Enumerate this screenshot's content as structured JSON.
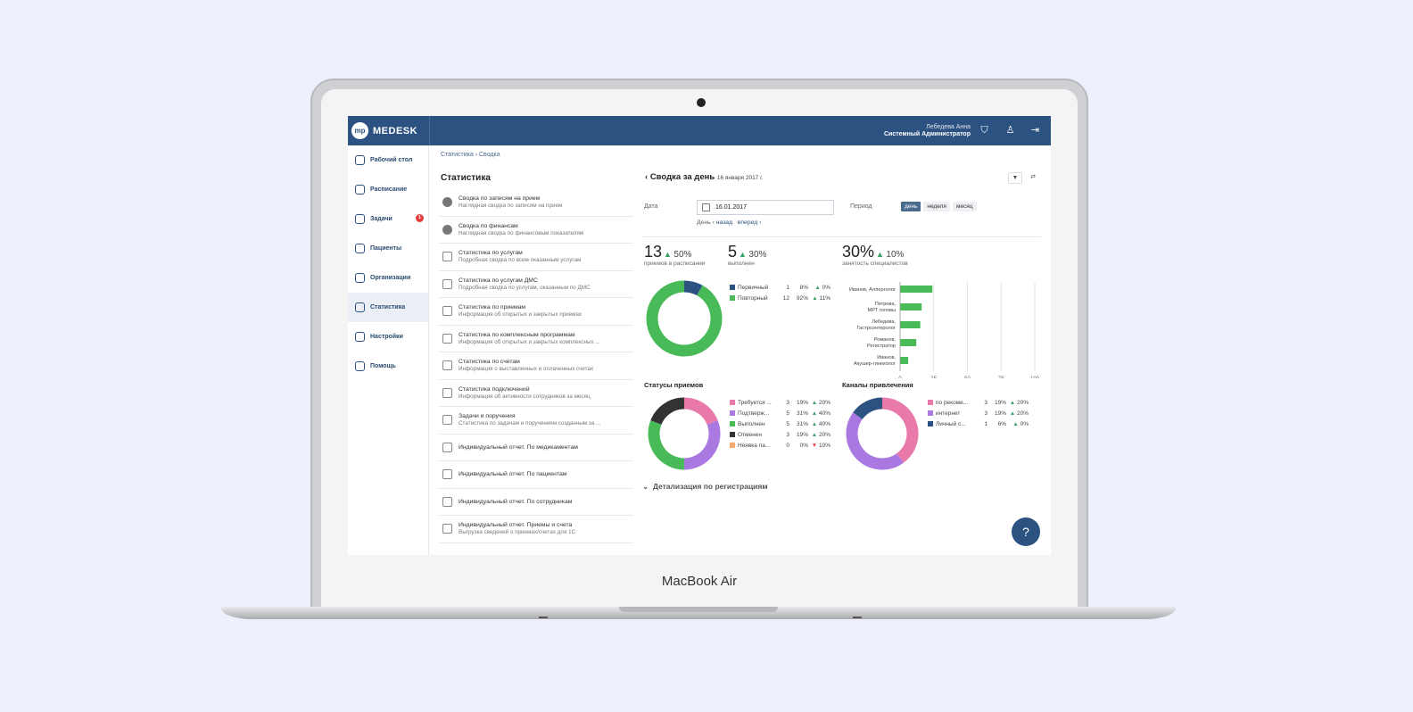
{
  "device": {
    "brand": "MacBook Air"
  },
  "app": {
    "logo_mark": "mp",
    "logo_text": "MEDESK"
  },
  "user": {
    "name": "Лебедева Анна",
    "role": "Системный Администратор"
  },
  "topbar_icons": [
    "shield-icon",
    "user-icon",
    "logout-icon"
  ],
  "sidebar": {
    "items": [
      {
        "label": "Рабочий стол",
        "icon": "dashboard-icon",
        "active": false
      },
      {
        "label": "Расписание",
        "icon": "calendar-icon",
        "active": false
      },
      {
        "label": "Задачи",
        "icon": "tasks-icon",
        "active": false,
        "badge": "1"
      },
      {
        "label": "Пациенты",
        "icon": "patients-icon",
        "active": false
      },
      {
        "label": "Организации",
        "icon": "organizations-icon",
        "active": false
      },
      {
        "label": "Статистика",
        "icon": "statistics-icon",
        "active": true
      },
      {
        "label": "Настройки",
        "icon": "settings-icon",
        "active": false
      },
      {
        "label": "Помощь",
        "icon": "help-icon",
        "active": false
      }
    ]
  },
  "breadcrumb": {
    "root": "Статистика",
    "current": "Сводка"
  },
  "list": {
    "title": "Статистика",
    "reports": [
      {
        "title": "Сводка по записям на прием",
        "subtitle": "Наглядная сводка по записям на прием",
        "icon": "pie"
      },
      {
        "title": "Сводка по финансам",
        "subtitle": "Наглядная сводка по финансовым показателям",
        "icon": "pie"
      },
      {
        "title": "Статистика по услугам",
        "subtitle": "Подробная сводка по всем оказанным услугам",
        "icon": "table"
      },
      {
        "title": "Статистика по услугам ДМС",
        "subtitle": "Подробная сводка по услугам, оказанным по ДМС",
        "icon": "table"
      },
      {
        "title": "Статистика по приемам",
        "subtitle": "Информация об открытых и закрытых приемах",
        "icon": "table"
      },
      {
        "title": "Статистика по комплексным программам",
        "subtitle": "Информация об открытых и закрытых комплексных ...",
        "icon": "table"
      },
      {
        "title": "Статистика по счетам",
        "subtitle": "Информация о выставленных и оплаченных счетах",
        "icon": "table"
      },
      {
        "title": "Статистика подключений",
        "subtitle": "Информация об активности сотрудников за месяц",
        "icon": "table"
      },
      {
        "title": "Задачи и поручения",
        "subtitle": "Статистика по задачам и поручениям созданным за ...",
        "icon": "doc"
      },
      {
        "title": "Индивидуальный отчет. По медикаментам",
        "subtitle": "",
        "icon": "doc"
      },
      {
        "title": "Индивидуальный отчет. По пациентам",
        "subtitle": "",
        "icon": "doc"
      },
      {
        "title": "Индивидуальный отчет. По сотрудникам",
        "subtitle": "",
        "icon": "doc"
      },
      {
        "title": "Индивидуальный отчет. Приемы и счета",
        "subtitle": "Выгрузка сведений о приемах/счетах для 1С",
        "icon": "doc"
      }
    ]
  },
  "summary": {
    "title": "Сводка за день",
    "date_text": "16 января 2017 г.",
    "filter_label": "▼",
    "date_label": "Дата",
    "date_value": "16.01.2017",
    "day_label": "День",
    "back_label": "назад",
    "forward_label": "вперед",
    "period_label": "Период",
    "periods": [
      {
        "label": "день",
        "active": true
      },
      {
        "label": "неделя",
        "active": false
      },
      {
        "label": "месяц",
        "active": false
      }
    ],
    "kpis": [
      {
        "value": "13",
        "change": "50%",
        "caption": "приемов в расписании"
      },
      {
        "value": "5",
        "change": "30%",
        "caption": "выполнен"
      },
      {
        "value": "30%",
        "change": "10%",
        "caption": "занятость специалистов"
      }
    ],
    "visit_types": {
      "legend": [
        {
          "name": "Первичный",
          "count": "1",
          "percent": "8%",
          "change": "0%",
          "dir": "up",
          "color": "#2c5282",
          "share": 8
        },
        {
          "name": "Повторный",
          "count": "12",
          "percent": "92%",
          "change": "11%",
          "dir": "up",
          "color": "#48bb58",
          "share": 92
        }
      ]
    },
    "statuses": {
      "title": "Статусы приемов",
      "legend": [
        {
          "name": "Требуется ...",
          "count": "3",
          "percent": "19%",
          "change": "20%",
          "dir": "up",
          "color": "#e879a9",
          "share": 19
        },
        {
          "name": "Подтверж...",
          "count": "5",
          "percent": "31%",
          "change": "40%",
          "dir": "up",
          "color": "#a978e0",
          "share": 31
        },
        {
          "name": "Выполнен",
          "count": "5",
          "percent": "31%",
          "change": "40%",
          "dir": "up",
          "color": "#48bb58",
          "share": 31
        },
        {
          "name": "Отменен",
          "count": "3",
          "percent": "19%",
          "change": "20%",
          "dir": "up",
          "color": "#333333",
          "share": 19
        },
        {
          "name": "Неявка па...",
          "count": "0",
          "percent": "0%",
          "change": "10%",
          "dir": "down",
          "color": "#f6a96b",
          "share": 0
        }
      ]
    },
    "channels": {
      "title": "Каналы привлечения",
      "legend": [
        {
          "name": "по рекоме...",
          "count": "3",
          "percent": "19%",
          "change": "20%",
          "dir": "up",
          "color": "#e879a9",
          "share": 40
        },
        {
          "name": "интернет",
          "count": "3",
          "percent": "19%",
          "change": "20%",
          "dir": "up",
          "color": "#a978e0",
          "share": 45
        },
        {
          "name": "Личный с...",
          "count": "1",
          "percent": "6%",
          "change": "0%",
          "dir": "up",
          "color": "#2c5282",
          "share": 15
        }
      ]
    },
    "specialists": {
      "categories": [
        "Иванов, Аллерголог",
        "Петрова, МРТ головы",
        "Лебедева, Гастроэнтеролог",
        "Романов, Регистратор",
        "Иванов, Акушер-гинеколог"
      ],
      "values": [
        24,
        16,
        15,
        12,
        6
      ],
      "ticks": [
        "0",
        "25",
        "50",
        "75",
        "100"
      ],
      "xlim": [
        0,
        100
      ]
    },
    "detail_label": "Детализация по регистрациям"
  },
  "help_button": "?"
}
